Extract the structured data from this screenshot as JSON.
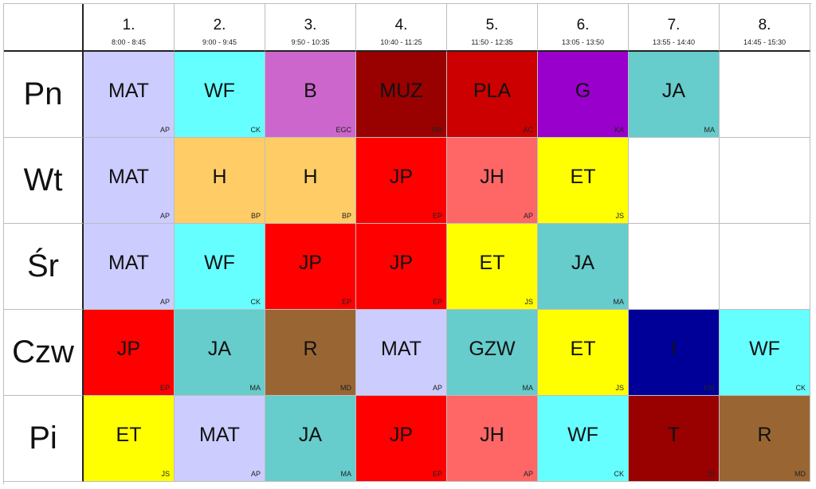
{
  "periods": [
    {
      "number": "1.",
      "time": "8:00 - 8:45"
    },
    {
      "number": "2.",
      "time": "9:00 - 9:45"
    },
    {
      "number": "3.",
      "time": "9:50 - 10:35"
    },
    {
      "number": "4.",
      "time": "10:40 - 11:25"
    },
    {
      "number": "5.",
      "time": "11:50 - 12:35"
    },
    {
      "number": "6.",
      "time": "13:05 - 13:50"
    },
    {
      "number": "7.",
      "time": "13:55 - 14:40"
    },
    {
      "number": "8.",
      "time": "14:45 - 15:30"
    }
  ],
  "days": [
    {
      "name": "Pn",
      "lessons": [
        {
          "subject": "MAT",
          "teacher": "AP",
          "color": "#ccccff"
        },
        {
          "subject": "WF",
          "teacher": "CK",
          "color": "#66ffff"
        },
        {
          "subject": "B",
          "teacher": "EGC",
          "color": "#cc66cc"
        },
        {
          "subject": "MUZ",
          "teacher": "RR",
          "color": "#990000"
        },
        {
          "subject": "PLA",
          "teacher": "AC",
          "color": "#cc0000"
        },
        {
          "subject": "G",
          "teacher": "KA",
          "color": "#9900cc"
        },
        {
          "subject": "JA",
          "teacher": "MA",
          "color": "#66cccc"
        },
        null
      ]
    },
    {
      "name": "Wt",
      "lessons": [
        {
          "subject": "MAT",
          "teacher": "AP",
          "color": "#ccccff"
        },
        {
          "subject": "H",
          "teacher": "BP",
          "color": "#ffcc66"
        },
        {
          "subject": "H",
          "teacher": "BP",
          "color": "#ffcc66"
        },
        {
          "subject": "JP",
          "teacher": "EP",
          "color": "#ff0000"
        },
        {
          "subject": "JH",
          "teacher": "AP",
          "color": "#ff6666"
        },
        {
          "subject": "ET",
          "teacher": "JS",
          "color": "#ffff00"
        },
        null,
        null
      ]
    },
    {
      "name": "Śr",
      "lessons": [
        {
          "subject": "MAT",
          "teacher": "AP",
          "color": "#ccccff"
        },
        {
          "subject": "WF",
          "teacher": "CK",
          "color": "#66ffff"
        },
        {
          "subject": "JP",
          "teacher": "EP",
          "color": "#ff0000"
        },
        {
          "subject": "JP",
          "teacher": "EP",
          "color": "#ff0000"
        },
        {
          "subject": "ET",
          "teacher": "JS",
          "color": "#ffff00"
        },
        {
          "subject": "JA",
          "teacher": "MA",
          "color": "#66cccc"
        },
        null,
        null
      ]
    },
    {
      "name": "Czw",
      "lessons": [
        {
          "subject": "JP",
          "teacher": "EP",
          "color": "#ff0000"
        },
        {
          "subject": "JA",
          "teacher": "MA",
          "color": "#66cccc"
        },
        {
          "subject": "R",
          "teacher": "MD",
          "color": "#996633"
        },
        {
          "subject": "MAT",
          "teacher": "AP",
          "color": "#ccccff"
        },
        {
          "subject": "GZW",
          "teacher": "MA",
          "color": "#66cccc"
        },
        {
          "subject": "ET",
          "teacher": "JS",
          "color": "#ffff00"
        },
        {
          "subject": "I",
          "teacher": "KM",
          "color": "#000099"
        },
        {
          "subject": "WF",
          "teacher": "CK",
          "color": "#66ffff"
        }
      ]
    },
    {
      "name": "Pi",
      "lessons": [
        {
          "subject": "ET",
          "teacher": "JS",
          "color": "#ffff00"
        },
        {
          "subject": "MAT",
          "teacher": "AP",
          "color": "#ccccff"
        },
        {
          "subject": "JA",
          "teacher": "MA",
          "color": "#66cccc"
        },
        {
          "subject": "JP",
          "teacher": "EP",
          "color": "#ff0000"
        },
        {
          "subject": "JH",
          "teacher": "AP",
          "color": "#ff6666"
        },
        {
          "subject": "WF",
          "teacher": "CK",
          "color": "#66ffff"
        },
        {
          "subject": "T",
          "teacher": "JS",
          "color": "#990000"
        },
        {
          "subject": "R",
          "teacher": "MD",
          "color": "#996633"
        }
      ]
    }
  ]
}
